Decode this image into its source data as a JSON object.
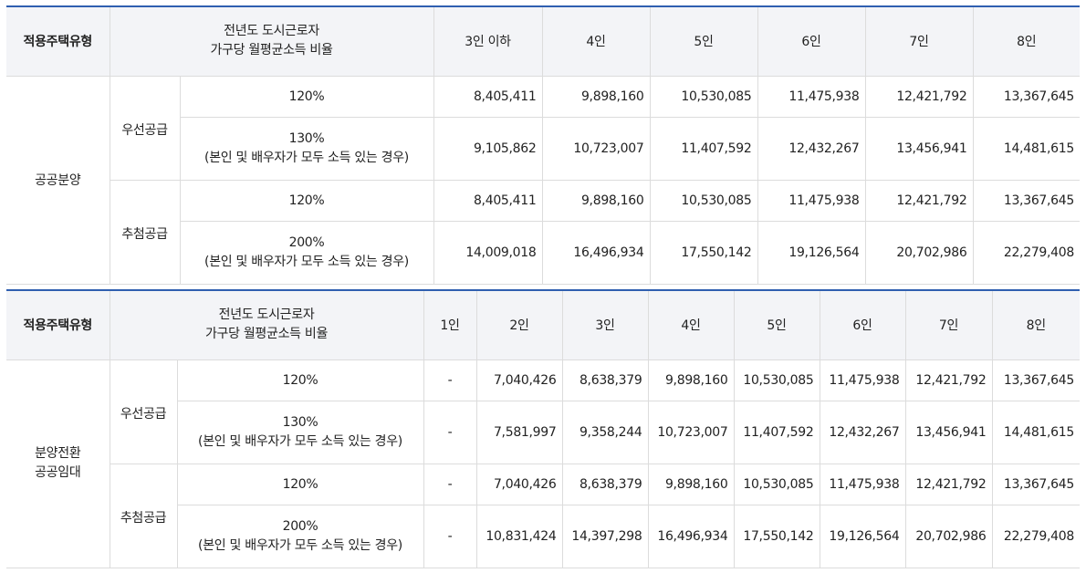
{
  "table1": {
    "header": {
      "type": "적용주택유형",
      "ratio_line1": "전년도 도시근로자",
      "ratio_line2": "가구당 월평균소득 비율",
      "cols": [
        "3인 이하",
        "4인",
        "5인",
        "6인",
        "7인",
        "8인"
      ]
    },
    "group": "공공분양",
    "sections": [
      {
        "name": "우선공급",
        "rows": [
          {
            "ratio": "120%",
            "note": "",
            "values": [
              "8,405,411",
              "9,898,160",
              "10,530,085",
              "11,475,938",
              "12,421,792",
              "13,367,645"
            ]
          },
          {
            "ratio": "130%",
            "note": "(본인 및 배우자가 모두 소득 있는 경우)",
            "values": [
              "9,105,862",
              "10,723,007",
              "11,407,592",
              "12,432,267",
              "13,456,941",
              "14,481,615"
            ]
          }
        ]
      },
      {
        "name": "추첨공급",
        "rows": [
          {
            "ratio": "120%",
            "note": "",
            "values": [
              "8,405,411",
              "9,898,160",
              "10,530,085",
              "11,475,938",
              "12,421,792",
              "13,367,645"
            ]
          },
          {
            "ratio": "200%",
            "note": "(본인 및 배우자가 모두 소득 있는 경우)",
            "values": [
              "14,009,018",
              "16,496,934",
              "17,550,142",
              "19,126,564",
              "20,702,986",
              "22,279,408"
            ]
          }
        ]
      }
    ]
  },
  "table2": {
    "header": {
      "type": "적용주택유형",
      "ratio_line1": "전년도 도시근로자",
      "ratio_line2": "가구당 월평균소득 비율",
      "cols": [
        "1인",
        "2인",
        "3인",
        "4인",
        "5인",
        "6인",
        "7인",
        "8인"
      ]
    },
    "group_line1": "분양전환",
    "group_line2": "공공임대",
    "sections": [
      {
        "name": "우선공급",
        "rows": [
          {
            "ratio": "120%",
            "note": "",
            "values": [
              "-",
              "7,040,426",
              "8,638,379",
              "9,898,160",
              "10,530,085",
              "11,475,938",
              "12,421,792",
              "13,367,645"
            ]
          },
          {
            "ratio": "130%",
            "note": "(본인 및 배우자가 모두 소득 있는 경우)",
            "values": [
              "-",
              "7,581,997",
              "9,358,244",
              "10,723,007",
              "11,407,592",
              "12,432,267",
              "13,456,941",
              "14,481,615"
            ]
          }
        ]
      },
      {
        "name": "추첨공급",
        "rows": [
          {
            "ratio": "120%",
            "note": "",
            "values": [
              "-",
              "7,040,426",
              "8,638,379",
              "9,898,160",
              "10,530,085",
              "11,475,938",
              "12,421,792",
              "13,367,645"
            ]
          },
          {
            "ratio": "200%",
            "note": "(본인 및 배우자가 모두 소득 있는 경우)",
            "values": [
              "-",
              "10,831,424",
              "14,397,298",
              "16,496,934",
              "17,550,142",
              "19,126,564",
              "20,702,986",
              "22,279,408"
            ]
          }
        ]
      }
    ]
  }
}
